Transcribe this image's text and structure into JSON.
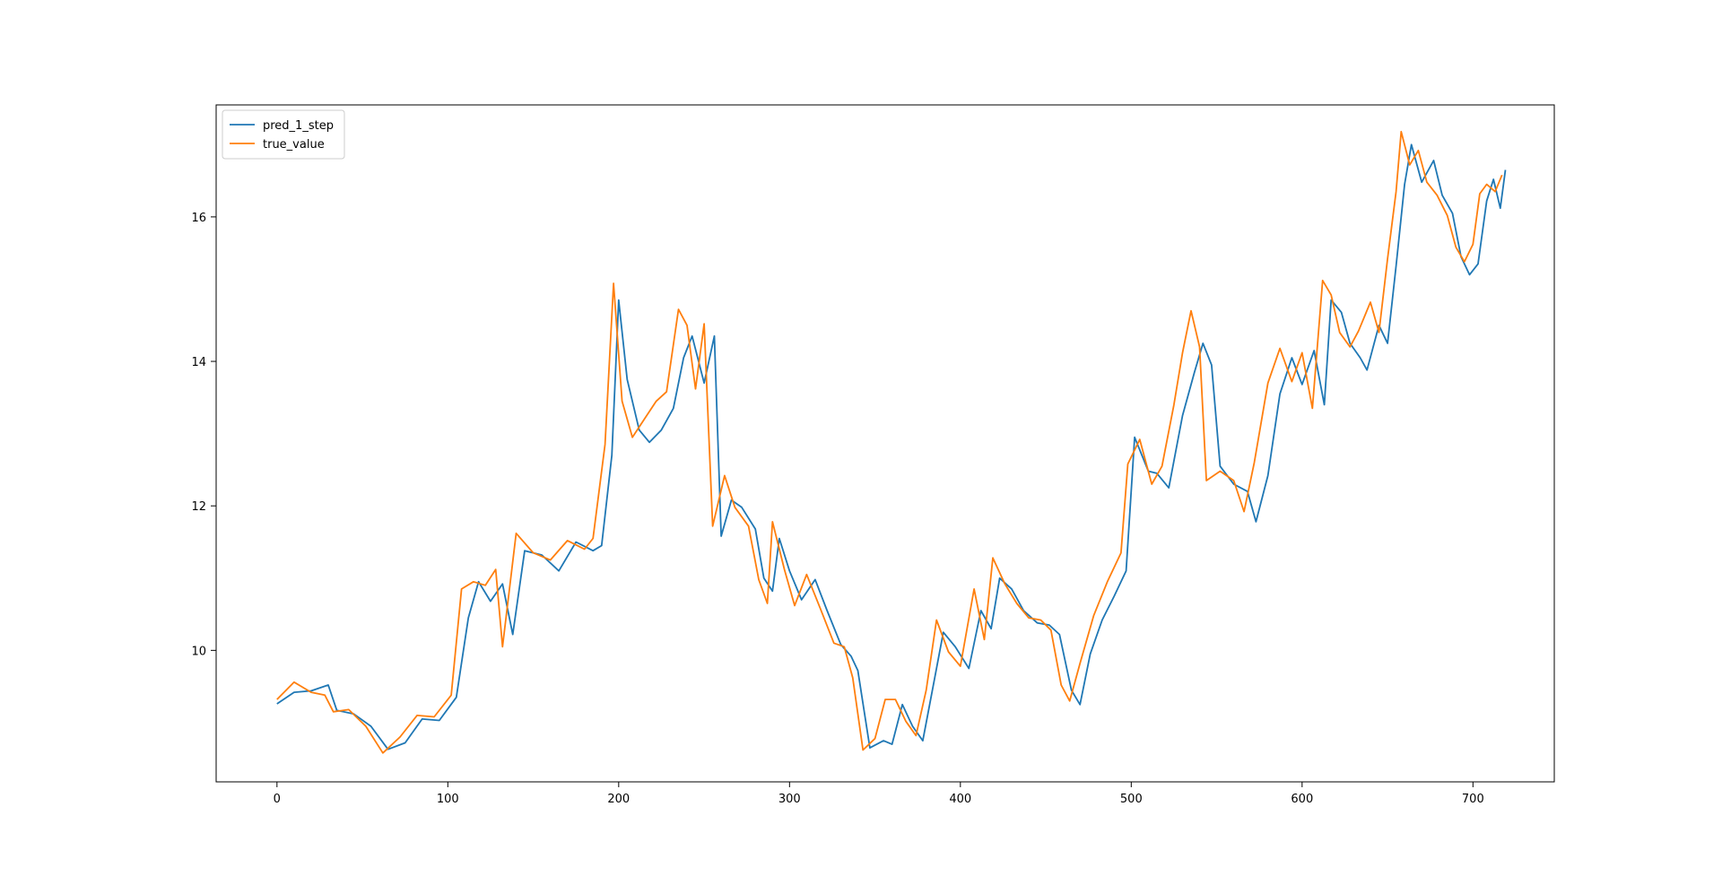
{
  "chart_data": {
    "type": "line",
    "title": "",
    "xlabel": "",
    "ylabel": "",
    "xlim": [
      -35.6,
      747.6
    ],
    "ylim": [
      8.18,
      17.55
    ],
    "xticks": [
      0,
      100,
      200,
      300,
      400,
      500,
      600,
      700
    ],
    "yticks": [
      10,
      12,
      14,
      16
    ],
    "grid": false,
    "legend_position": "top-left",
    "series": [
      {
        "name": "pred_1_step",
        "color": "#1f77b4",
        "points": [
          [
            0,
            9.26
          ],
          [
            10,
            9.42
          ],
          [
            20,
            9.44
          ],
          [
            30,
            9.52
          ],
          [
            35,
            9.17
          ],
          [
            45,
            9.12
          ],
          [
            55,
            8.95
          ],
          [
            65,
            8.63
          ],
          [
            75,
            8.72
          ],
          [
            85,
            9.05
          ],
          [
            95,
            9.03
          ],
          [
            105,
            9.35
          ],
          [
            112,
            10.45
          ],
          [
            118,
            10.95
          ],
          [
            125,
            10.68
          ],
          [
            132,
            10.92
          ],
          [
            138,
            10.22
          ],
          [
            145,
            11.38
          ],
          [
            155,
            11.32
          ],
          [
            165,
            11.1
          ],
          [
            175,
            11.5
          ],
          [
            185,
            11.38
          ],
          [
            190,
            11.45
          ],
          [
            196,
            12.7
          ],
          [
            200,
            14.85
          ],
          [
            205,
            13.75
          ],
          [
            212,
            13.05
          ],
          [
            218,
            12.88
          ],
          [
            225,
            13.05
          ],
          [
            232,
            13.35
          ],
          [
            238,
            14.05
          ],
          [
            243,
            14.35
          ],
          [
            250,
            13.7
          ],
          [
            256,
            14.35
          ],
          [
            260,
            11.58
          ],
          [
            266,
            12.08
          ],
          [
            272,
            11.98
          ],
          [
            280,
            11.68
          ],
          [
            285,
            11.0
          ],
          [
            290,
            10.82
          ],
          [
            294,
            11.55
          ],
          [
            300,
            11.1
          ],
          [
            307,
            10.7
          ],
          [
            315,
            10.98
          ],
          [
            322,
            10.55
          ],
          [
            330,
            10.08
          ],
          [
            336,
            9.92
          ],
          [
            340,
            9.72
          ],
          [
            347,
            8.65
          ],
          [
            355,
            8.75
          ],
          [
            360,
            8.7
          ],
          [
            366,
            9.25
          ],
          [
            372,
            8.95
          ],
          [
            378,
            8.75
          ],
          [
            385,
            9.62
          ],
          [
            390,
            10.25
          ],
          [
            397,
            10.05
          ],
          [
            405,
            9.75
          ],
          [
            412,
            10.55
          ],
          [
            418,
            10.3
          ],
          [
            423,
            11.0
          ],
          [
            430,
            10.85
          ],
          [
            437,
            10.55
          ],
          [
            445,
            10.38
          ],
          [
            452,
            10.35
          ],
          [
            458,
            10.22
          ],
          [
            465,
            9.45
          ],
          [
            470,
            9.25
          ],
          [
            476,
            9.95
          ],
          [
            483,
            10.42
          ],
          [
            490,
            10.75
          ],
          [
            497,
            11.1
          ],
          [
            502,
            12.95
          ],
          [
            510,
            12.48
          ],
          [
            515,
            12.45
          ],
          [
            522,
            12.25
          ],
          [
            530,
            13.25
          ],
          [
            537,
            13.85
          ],
          [
            542,
            14.25
          ],
          [
            547,
            13.95
          ],
          [
            552,
            12.55
          ],
          [
            560,
            12.3
          ],
          [
            568,
            12.2
          ],
          [
            573,
            11.78
          ],
          [
            580,
            12.42
          ],
          [
            587,
            13.55
          ],
          [
            594,
            14.05
          ],
          [
            600,
            13.68
          ],
          [
            607,
            14.15
          ],
          [
            613,
            13.4
          ],
          [
            617,
            14.85
          ],
          [
            623,
            14.68
          ],
          [
            628,
            14.25
          ],
          [
            634,
            14.05
          ],
          [
            638,
            13.88
          ],
          [
            645,
            14.5
          ],
          [
            650,
            14.25
          ],
          [
            655,
            15.32
          ],
          [
            660,
            16.45
          ],
          [
            664,
            17.0
          ],
          [
            670,
            16.48
          ],
          [
            677,
            16.78
          ],
          [
            682,
            16.3
          ],
          [
            688,
            16.05
          ],
          [
            693,
            15.45
          ],
          [
            698,
            15.2
          ],
          [
            703,
            15.35
          ],
          [
            708,
            16.22
          ],
          [
            712,
            16.52
          ],
          [
            716,
            16.12
          ],
          [
            719,
            16.65
          ]
        ]
      },
      {
        "name": "true_value",
        "color": "#ff7f0e",
        "points": [
          [
            0,
            9.32
          ],
          [
            10,
            9.56
          ],
          [
            20,
            9.42
          ],
          [
            28,
            9.38
          ],
          [
            33,
            9.15
          ],
          [
            42,
            9.18
          ],
          [
            52,
            8.95
          ],
          [
            62,
            8.58
          ],
          [
            72,
            8.8
          ],
          [
            82,
            9.1
          ],
          [
            92,
            9.08
          ],
          [
            102,
            9.38
          ],
          [
            108,
            10.85
          ],
          [
            115,
            10.95
          ],
          [
            122,
            10.9
          ],
          [
            128,
            11.12
          ],
          [
            132,
            10.05
          ],
          [
            140,
            11.62
          ],
          [
            150,
            11.35
          ],
          [
            160,
            11.25
          ],
          [
            170,
            11.52
          ],
          [
            180,
            11.4
          ],
          [
            185,
            11.55
          ],
          [
            192,
            12.85
          ],
          [
            197,
            15.08
          ],
          [
            202,
            13.45
          ],
          [
            208,
            12.95
          ],
          [
            215,
            13.2
          ],
          [
            222,
            13.45
          ],
          [
            228,
            13.58
          ],
          [
            235,
            14.72
          ],
          [
            240,
            14.5
          ],
          [
            245,
            13.62
          ],
          [
            250,
            14.52
          ],
          [
            255,
            11.72
          ],
          [
            262,
            12.42
          ],
          [
            268,
            11.98
          ],
          [
            276,
            11.72
          ],
          [
            282,
            10.98
          ],
          [
            287,
            10.65
          ],
          [
            290,
            11.78
          ],
          [
            297,
            11.12
          ],
          [
            303,
            10.62
          ],
          [
            310,
            11.05
          ],
          [
            318,
            10.58
          ],
          [
            326,
            10.1
          ],
          [
            332,
            10.05
          ],
          [
            337,
            9.62
          ],
          [
            343,
            8.62
          ],
          [
            350,
            8.78
          ],
          [
            356,
            9.32
          ],
          [
            362,
            9.32
          ],
          [
            368,
            9.02
          ],
          [
            374,
            8.82
          ],
          [
            380,
            9.45
          ],
          [
            386,
            10.42
          ],
          [
            393,
            9.98
          ],
          [
            400,
            9.78
          ],
          [
            408,
            10.85
          ],
          [
            414,
            10.15
          ],
          [
            419,
            11.28
          ],
          [
            426,
            10.92
          ],
          [
            433,
            10.65
          ],
          [
            440,
            10.45
          ],
          [
            447,
            10.42
          ],
          [
            453,
            10.28
          ],
          [
            459,
            9.52
          ],
          [
            464,
            9.3
          ],
          [
            470,
            9.82
          ],
          [
            478,
            10.48
          ],
          [
            486,
            10.95
          ],
          [
            494,
            11.35
          ],
          [
            498,
            12.58
          ],
          [
            505,
            12.92
          ],
          [
            512,
            12.3
          ],
          [
            518,
            12.55
          ],
          [
            525,
            13.4
          ],
          [
            530,
            14.12
          ],
          [
            535,
            14.7
          ],
          [
            540,
            14.2
          ],
          [
            544,
            12.35
          ],
          [
            552,
            12.48
          ],
          [
            560,
            12.35
          ],
          [
            566,
            11.92
          ],
          [
            572,
            12.6
          ],
          [
            580,
            13.7
          ],
          [
            587,
            14.18
          ],
          [
            594,
            13.72
          ],
          [
            600,
            14.12
          ],
          [
            606,
            13.35
          ],
          [
            612,
            15.12
          ],
          [
            617,
            14.92
          ],
          [
            622,
            14.4
          ],
          [
            628,
            14.2
          ],
          [
            633,
            14.42
          ],
          [
            640,
            14.82
          ],
          [
            645,
            14.4
          ],
          [
            650,
            15.42
          ],
          [
            655,
            16.35
          ],
          [
            658,
            17.18
          ],
          [
            663,
            16.72
          ],
          [
            668,
            16.92
          ],
          [
            673,
            16.48
          ],
          [
            679,
            16.3
          ],
          [
            685,
            16.02
          ],
          [
            690,
            15.58
          ],
          [
            695,
            15.38
          ],
          [
            700,
            15.62
          ],
          [
            704,
            16.32
          ],
          [
            708,
            16.45
          ],
          [
            713,
            16.35
          ],
          [
            717,
            16.58
          ]
        ]
      }
    ]
  }
}
